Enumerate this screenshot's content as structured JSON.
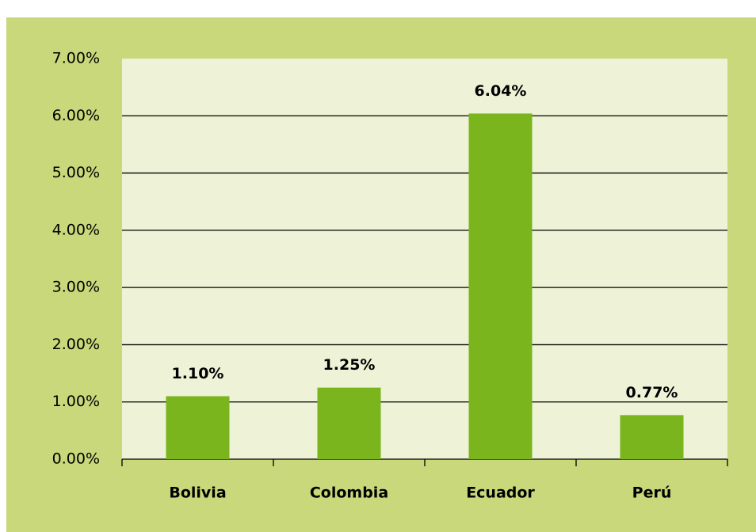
{
  "chart_data": {
    "type": "bar",
    "categories": [
      "Bolivia",
      "Colombia",
      "Ecuador",
      "Perú"
    ],
    "values": [
      1.1,
      1.25,
      6.04,
      0.77
    ],
    "value_labels": [
      "1.10%",
      "1.25%",
      "6.04%",
      "0.77%"
    ],
    "color": "#7ab51d",
    "ylim": [
      0,
      7
    ],
    "yticks": [
      {
        "value": 0,
        "label": "0.00%"
      },
      {
        "value": 1,
        "label": "1.00%"
      },
      {
        "value": 2,
        "label": "2.00%"
      },
      {
        "value": 3,
        "label": "3.00%"
      },
      {
        "value": 4,
        "label": "4.00%"
      },
      {
        "value": 5,
        "label": "5.00%"
      },
      {
        "value": 6,
        "label": "6.00%"
      },
      {
        "value": 7,
        "label": "7.00%"
      }
    ],
    "grid": true
  }
}
